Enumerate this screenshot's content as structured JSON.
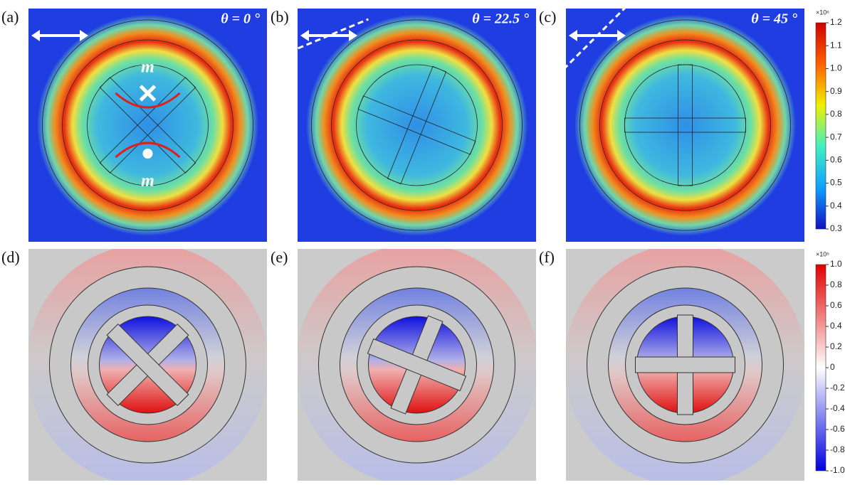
{
  "panels": [
    {
      "label": "(a)",
      "angle": "θ = 0 °"
    },
    {
      "label": "(b)",
      "angle": "θ = 22.5 °"
    },
    {
      "label": "(c)",
      "angle": "θ = 45 °"
    },
    {
      "label": "(d)"
    },
    {
      "label": "(e)"
    },
    {
      "label": "(f)"
    }
  ],
  "annotations": {
    "moment_top": "m",
    "moment_bottom": "m"
  },
  "colorbars": [
    {
      "multiplier": "×10⁶",
      "ticks": [
        "1.2",
        "1.1",
        "1.0",
        "0.9",
        "0.8",
        "0.7",
        "0.6",
        "0.5",
        "0.4",
        "0.3"
      ]
    },
    {
      "multiplier": "×10⁵",
      "ticks": [
        "1.0",
        "0.8",
        "0.6",
        "0.4",
        "0.2",
        "0",
        "-0.2",
        "-0.4",
        "-0.6",
        "-0.8",
        "-1.0"
      ]
    }
  ]
}
